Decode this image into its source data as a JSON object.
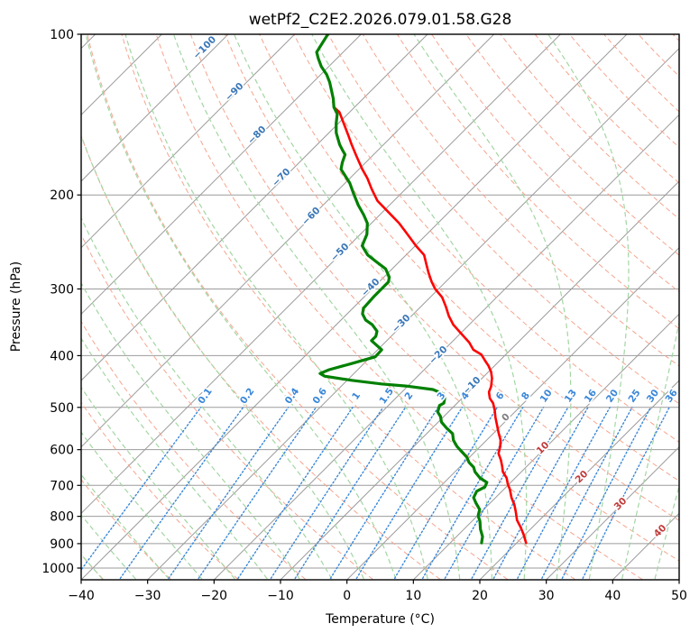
{
  "title": "wetPf2_C2E2.2026.079.01.58.G28",
  "axes": {
    "x_label": "Temperature (°C)",
    "y_label": "Pressure (hPa)",
    "x_ticks": [
      -40,
      -30,
      -20,
      -10,
      0,
      10,
      20,
      30,
      40,
      50
    ],
    "y_ticks": [
      100,
      200,
      300,
      400,
      500,
      600,
      700,
      800,
      900,
      1000
    ],
    "x_range": [
      -40,
      50
    ],
    "p_top": 100,
    "p_bottom": 1050
  },
  "colors": {
    "isotherm_line": "#9b9b9b",
    "grid_line": "#9b9b9b",
    "dry_adiabat": "#f5a58f",
    "moist_adiabat": "#a3d6a3",
    "mixing_line": "#3a87d8",
    "temperature": "#ff0000",
    "dewpoint": "#008000",
    "label_negative": "#3a77b8",
    "label_zero": "#7f7f7f",
    "label_positive": "#c23a3a",
    "border": "#000000"
  },
  "chart_data": {
    "type": "line",
    "subtype": "skewT-logP",
    "title": "wetPf2_C2E2.2026.079.01.58.G28",
    "xlabel": "Temperature (°C)",
    "ylabel": "Pressure (hPa)",
    "x_range": [
      -40,
      50
    ],
    "p_range": [
      100,
      1050
    ],
    "skew": "isotherms at 45 degrees, log-pressure vertical axis",
    "grid": true,
    "legend": "none",
    "isotherms": {
      "start": -120,
      "end": 50,
      "step": 10
    },
    "dry_adiabats_theta_c": {
      "start": -40,
      "end": 200,
      "step": 10
    },
    "moist_adiabats_t0_c": {
      "start": -40,
      "end": 45,
      "step": 5
    },
    "mixing_ratio_values_gkg": [
      0.1,
      0.2,
      0.4,
      0.6,
      1,
      1.5,
      2,
      3,
      4,
      6,
      8,
      10,
      13,
      16,
      20,
      25,
      30,
      36
    ],
    "mixing_line_p_span": [
      1045,
      500
    ],
    "mixing_label_p": 480,
    "isotherm_labels": [
      {
        "v": -100,
        "x": 227,
        "y": 53
      },
      {
        "v": -90,
        "x": 260,
        "y": 102
      },
      {
        "v": -80,
        "x": 285,
        "y": 150
      },
      {
        "v": -70,
        "x": 312,
        "y": 197
      },
      {
        "v": -60,
        "x": 345,
        "y": 240
      },
      {
        "v": -50,
        "x": 377,
        "y": 280
      },
      {
        "v": -40,
        "x": 411,
        "y": 319
      },
      {
        "v": -30,
        "x": 445,
        "y": 359
      },
      {
        "v": -20,
        "x": 486,
        "y": 394
      },
      {
        "v": -10,
        "x": 523,
        "y": 428
      },
      {
        "v": 0,
        "x": 561,
        "y": 463
      },
      {
        "v": 10,
        "x": 602,
        "y": 497
      },
      {
        "v": 20,
        "x": 645,
        "y": 529
      },
      {
        "v": 30,
        "x": 688,
        "y": 559
      },
      {
        "v": 40,
        "x": 732,
        "y": 589
      }
    ],
    "series": [
      {
        "name": "temperature",
        "color": "#ff0000",
        "points_p_t": [
          [
            100,
            -85
          ],
          [
            108,
            -84
          ],
          [
            111,
            -82.8
          ],
          [
            115,
            -81.1
          ],
          [
            119,
            -79.1
          ],
          [
            123,
            -77.5
          ],
          [
            128,
            -75.8
          ],
          [
            132,
            -74.5
          ],
          [
            137,
            -73.1
          ],
          [
            140,
            -71.5
          ],
          [
            149,
            -68.5
          ],
          [
            155,
            -66.6
          ],
          [
            161,
            -64.8
          ],
          [
            169,
            -62.4
          ],
          [
            179,
            -59.5
          ],
          [
            186,
            -57.4
          ],
          [
            195,
            -55.1
          ],
          [
            205,
            -52.5
          ],
          [
            217,
            -48.6
          ],
          [
            226,
            -45.8
          ],
          [
            237,
            -42.9
          ],
          [
            249,
            -39.9
          ],
          [
            259,
            -37.3
          ],
          [
            270,
            -35.5
          ],
          [
            280,
            -33.9
          ],
          [
            291,
            -32.1
          ],
          [
            300,
            -30.5
          ],
          [
            311,
            -28.2
          ],
          [
            324,
            -26.2
          ],
          [
            337,
            -24.4
          ],
          [
            350,
            -22.4
          ],
          [
            364,
            -19.8
          ],
          [
            378,
            -17.3
          ],
          [
            390,
            -15.6
          ],
          [
            398,
            -13.7
          ],
          [
            408,
            -12.3
          ],
          [
            418,
            -10.9
          ],
          [
            429,
            -9.6
          ],
          [
            441,
            -8.5
          ],
          [
            457,
            -7.4
          ],
          [
            468,
            -6.9
          ],
          [
            481,
            -5.8
          ],
          [
            491,
            -4.6
          ],
          [
            506,
            -3.3
          ],
          [
            522,
            -2.1
          ],
          [
            541,
            -0.6
          ],
          [
            558,
            0.7
          ],
          [
            576,
            2.1
          ],
          [
            592,
            3
          ],
          [
            610,
            3.8
          ],
          [
            627,
            5.1
          ],
          [
            645,
            6.3
          ],
          [
            660,
            7.2
          ],
          [
            678,
            8.7
          ],
          [
            696,
            9.8
          ],
          [
            712,
            10.9
          ],
          [
            738,
            12.4
          ],
          [
            761,
            13.9
          ],
          [
            785,
            15.2
          ],
          [
            813,
            16.6
          ],
          [
            838,
            18.2
          ],
          [
            864,
            19.7
          ],
          [
            897,
            21.4
          ]
        ]
      },
      {
        "name": "dewpoint",
        "color": "#008000",
        "points_p_t": [
          [
            100,
            -85
          ],
          [
            108,
            -84
          ],
          [
            111,
            -82.8
          ],
          [
            115,
            -81.1
          ],
          [
            119,
            -79.1
          ],
          [
            123,
            -77.5
          ],
          [
            128,
            -75.8
          ],
          [
            132,
            -74.5
          ],
          [
            137,
            -73.1
          ],
          [
            141,
            -71.6
          ],
          [
            147,
            -70.3
          ],
          [
            153,
            -68.9
          ],
          [
            161,
            -66.6
          ],
          [
            165,
            -65.3
          ],
          [
            168,
            -64.3
          ],
          [
            174,
            -63.5
          ],
          [
            179,
            -62.7
          ],
          [
            190,
            -59.3
          ],
          [
            199,
            -57.1
          ],
          [
            209,
            -54.7
          ],
          [
            218,
            -52.4
          ],
          [
            226,
            -50.6
          ],
          [
            237,
            -49
          ],
          [
            249,
            -48
          ],
          [
            259,
            -45.8
          ],
          [
            267,
            -43.4
          ],
          [
            275,
            -41
          ],
          [
            285,
            -39.2
          ],
          [
            291,
            -38.6
          ],
          [
            300,
            -38.6
          ],
          [
            309,
            -38.6
          ],
          [
            326,
            -38.4
          ],
          [
            334,
            -37.7
          ],
          [
            343,
            -36.3
          ],
          [
            350,
            -34.6
          ],
          [
            360,
            -32.9
          ],
          [
            368,
            -32.3
          ],
          [
            375,
            -32.3
          ],
          [
            390,
            -29.4
          ],
          [
            402,
            -29.3
          ],
          [
            414,
            -31.9
          ],
          [
            425,
            -34.3
          ],
          [
            432,
            -35.1
          ],
          [
            437,
            -34
          ],
          [
            445,
            -29.3
          ],
          [
            452,
            -24.3
          ],
          [
            456,
            -20.3
          ],
          [
            463,
            -15.7
          ],
          [
            472,
            -13.4
          ],
          [
            481,
            -12.6
          ],
          [
            491,
            -12
          ],
          [
            496,
            -12.3
          ],
          [
            510,
            -11.6
          ],
          [
            520,
            -10.5
          ],
          [
            533,
            -9.5
          ],
          [
            547,
            -7.8
          ],
          [
            560,
            -6.1
          ],
          [
            576,
            -5
          ],
          [
            592,
            -3.5
          ],
          [
            608,
            -1.7
          ],
          [
            620,
            -0.4
          ],
          [
            634,
            0.7
          ],
          [
            647,
            2.1
          ],
          [
            660,
            3
          ],
          [
            678,
            4.7
          ],
          [
            691,
            6.4
          ],
          [
            705,
            6.8
          ],
          [
            718,
            6.2
          ],
          [
            738,
            6.7
          ],
          [
            756,
            7.9
          ],
          [
            777,
            9.4
          ],
          [
            798,
            10.1
          ],
          [
            817,
            11.2
          ],
          [
            846,
            12.5
          ],
          [
            873,
            13.9
          ],
          [
            897,
            14.7
          ]
        ]
      }
    ]
  }
}
